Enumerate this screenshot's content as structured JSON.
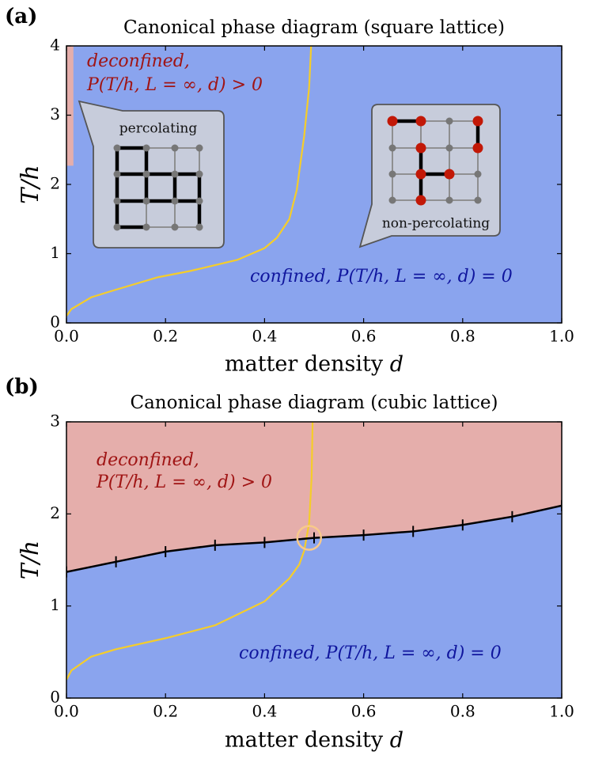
{
  "chart_data": [
    {
      "type": "phase",
      "panel_label": "(a)",
      "title": "Canonical phase diagram (square lattice)",
      "xlabel": "matter density d",
      "ylabel": "T/h",
      "xlim": [
        0,
        1
      ],
      "ylim": [
        0,
        4
      ],
      "xticks": [
        {
          "value": 0,
          "label": "0.0"
        },
        {
          "value": 0.2,
          "label": "0.2"
        },
        {
          "value": 0.4,
          "label": "0.4"
        },
        {
          "value": 0.6,
          "label": "0.6"
        },
        {
          "value": 0.8,
          "label": "0.8"
        },
        {
          "value": 1,
          "label": "1.0"
        }
      ],
      "yticks": [
        0,
        1,
        2,
        3,
        4
      ],
      "background": "#8aa4ee",
      "regions": [
        {
          "color": "#e5aeab",
          "x": [
            0,
            0.014
          ],
          "y": [
            2.27,
            4
          ]
        }
      ],
      "series": [
        {
          "color": "#f5cd2a",
          "x": [
            0,
            0.01,
            0.05,
            0.1,
            0.185,
            0.25,
            0.345,
            0.4,
            0.425,
            0.45,
            0.465,
            0.48,
            0.49,
            0.494
          ],
          "values": [
            0.1,
            0.2,
            0.37,
            0.48,
            0.66,
            0.75,
            0.91,
            1.08,
            1.23,
            1.5,
            1.92,
            2.7,
            3.4,
            4
          ]
        }
      ],
      "annotations": [
        "deconfined,",
        "P(T/h, L = ∞, d) > 0",
        "confined, P(T/h, L = ∞, d) = 0",
        "percolating",
        "non-percolating"
      ]
    },
    {
      "type": "phase",
      "panel_label": "(b)",
      "title": "Canonical phase diagram (cubic lattice)",
      "xlabel": "matter density d",
      "ylabel": "T/h",
      "xlim": [
        0,
        1
      ],
      "ylim": [
        0,
        3
      ],
      "xticks": [
        {
          "value": 0,
          "label": "0.0"
        },
        {
          "value": 0.2,
          "label": "0.2"
        },
        {
          "value": 0.4,
          "label": "0.4"
        },
        {
          "value": 0.6,
          "label": "0.6"
        },
        {
          "value": 0.8,
          "label": "0.8"
        },
        {
          "value": 1,
          "label": "1.0"
        }
      ],
      "yticks": [
        0,
        1,
        2,
        3
      ],
      "background": "#e5aeab",
      "series": [
        {
          "color": "#f5cd2a",
          "x": [
            0,
            0.01,
            0.05,
            0.1,
            0.2,
            0.3,
            0.4,
            0.45,
            0.47,
            0.48,
            0.49,
            0.495,
            0.497
          ],
          "values": [
            0.2,
            0.3,
            0.45,
            0.53,
            0.65,
            0.79,
            1.05,
            1.3,
            1.45,
            1.6,
            1.9,
            2.4,
            3
          ]
        },
        {
          "color": "#000000",
          "fill_below": "#8aa4ee",
          "markers": true,
          "x": [
            0,
            0.1,
            0.2,
            0.3,
            0.4,
            0.5,
            0.6,
            0.7,
            0.8,
            0.9,
            1
          ],
          "values": [
            1.37,
            1.48,
            1.59,
            1.66,
            1.69,
            1.74,
            1.77,
            1.81,
            1.88,
            1.97,
            2.09
          ]
        }
      ],
      "highlight": {
        "color": "#f8c98a",
        "x": 0.49,
        "y": 1.74
      },
      "annotations": [
        "deconfined,",
        "P(T/h, L = ∞, d) > 0",
        "confined, P(T/h, L = ∞, d) = 0"
      ]
    }
  ]
}
